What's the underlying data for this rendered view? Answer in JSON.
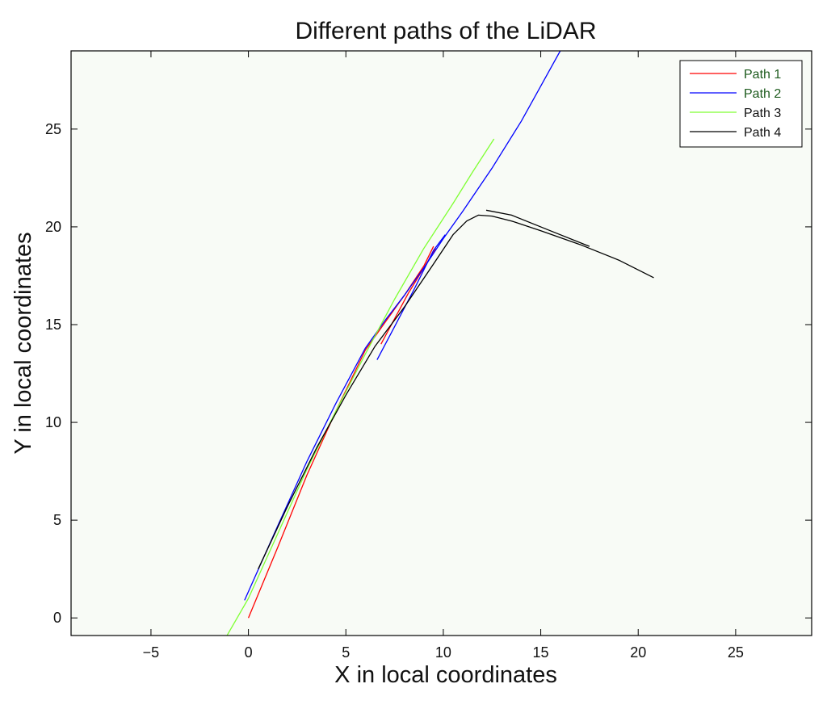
{
  "chart_data": {
    "type": "line",
    "title": "Different paths of the LiDAR",
    "xlabel": "X in local coordinates",
    "ylabel": "Y in local coordinates",
    "xlim": [
      -9.1,
      28.9
    ],
    "ylim": [
      -0.9,
      29.0
    ],
    "xticks": [
      -5,
      0,
      5,
      10,
      15,
      20,
      25
    ],
    "yticks": [
      0,
      5,
      10,
      15,
      20,
      25
    ],
    "xtick_labels": [
      "−5",
      "0",
      "5",
      "10",
      "15",
      "20",
      "25"
    ],
    "ytick_labels": [
      "0",
      "5",
      "10",
      "15",
      "20",
      "25"
    ],
    "grid": false,
    "legend_position": "top-right",
    "plot_background": "#f8fbf6",
    "series": [
      {
        "name": "Path 1",
        "color": "#ff0000",
        "legend_text_color": "#1c5a1c",
        "segments": [
          [
            [
              0.0,
              0.0
            ],
            [
              1.5,
              3.6
            ],
            [
              3.0,
              7.3
            ],
            [
              4.5,
              10.6
            ],
            [
              6.0,
              13.7
            ],
            [
              7.0,
              15.1
            ],
            [
              8.0,
              16.5
            ],
            [
              9.0,
              18.0
            ],
            [
              9.5,
              19.0
            ]
          ],
          [
            [
              6.8,
              14.0
            ],
            [
              7.5,
              15.3
            ],
            [
              8.2,
              16.6
            ],
            [
              9.0,
              17.9
            ],
            [
              9.6,
              18.9
            ]
          ]
        ]
      },
      {
        "name": "Path 2",
        "color": "#0000ff",
        "legend_text_color": "#1c5a1c",
        "segments": [
          [
            [
              -0.2,
              0.9
            ],
            [
              1.5,
              4.7
            ],
            [
              3.0,
              8.0
            ],
            [
              4.5,
              11.0
            ],
            [
              6.0,
              13.8
            ],
            [
              7.0,
              15.2
            ],
            [
              8.0,
              16.5
            ],
            [
              9.0,
              17.9
            ],
            [
              10.0,
              19.4
            ],
            [
              11.0,
              20.8
            ],
            [
              12.5,
              23.0
            ],
            [
              14.0,
              25.4
            ],
            [
              15.0,
              27.2
            ],
            [
              16.0,
              29.0
            ]
          ],
          [
            [
              6.6,
              13.2
            ],
            [
              7.5,
              14.9
            ],
            [
              8.5,
              16.8
            ],
            [
              9.5,
              18.8
            ],
            [
              10.1,
              19.6
            ]
          ]
        ]
      },
      {
        "name": "Path 3",
        "color": "#7fff33",
        "legend_text_color": "#111111",
        "segments": [
          [
            [
              -1.1,
              -0.9
            ],
            [
              0.0,
              1.0
            ],
            [
              1.5,
              4.3
            ],
            [
              3.0,
              7.6
            ],
            [
              4.5,
              10.6
            ],
            [
              6.0,
              13.5
            ],
            [
              7.5,
              16.3
            ],
            [
              9.0,
              18.9
            ],
            [
              10.5,
              21.2
            ],
            [
              11.5,
              22.8
            ],
            [
              12.6,
              24.5
            ]
          ]
        ]
      },
      {
        "name": "Path 4",
        "color": "#000000",
        "legend_text_color": "#111111",
        "segments": [
          [
            [
              0.5,
              2.5
            ],
            [
              2.0,
              5.7
            ],
            [
              3.5,
              8.7
            ],
            [
              5.0,
              11.4
            ],
            [
              6.5,
              13.9
            ],
            [
              8.0,
              15.9
            ],
            [
              9.5,
              18.1
            ],
            [
              10.5,
              19.6
            ],
            [
              11.2,
              20.3
            ],
            [
              11.8,
              20.6
            ],
            [
              12.5,
              20.55
            ],
            [
              13.5,
              20.3
            ],
            [
              15.0,
              19.8
            ],
            [
              17.0,
              19.1
            ],
            [
              19.0,
              18.3
            ],
            [
              20.8,
              17.4
            ]
          ],
          [
            [
              12.2,
              20.85
            ],
            [
              13.5,
              20.6
            ],
            [
              15.5,
              19.8
            ],
            [
              17.5,
              19.0
            ]
          ]
        ]
      }
    ]
  }
}
